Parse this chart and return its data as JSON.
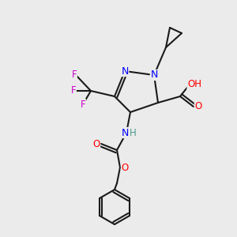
{
  "background_color": "#ebebeb",
  "bond_color": "#1a1a1a",
  "bond_lw": 1.5,
  "atom_colors": {
    "N": "#0000ff",
    "O": "#ff0000",
    "F": "#cc00cc",
    "H": "#4a9a8a",
    "C": "#1a1a1a"
  },
  "font_size": 8.5,
  "fig_size": [
    3.0,
    3.0
  ],
  "dpi": 100
}
